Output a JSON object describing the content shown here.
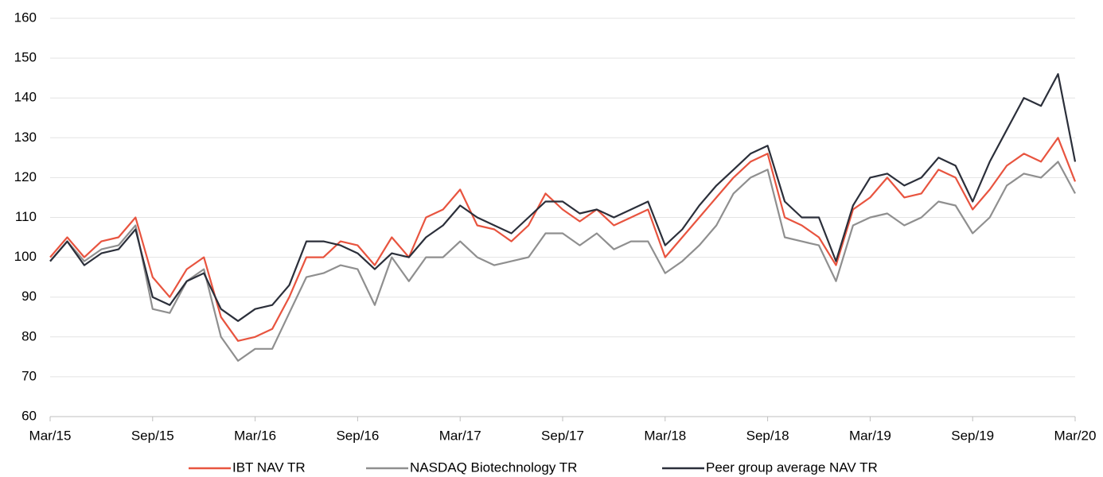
{
  "chart_data": {
    "type": "line",
    "categories": [
      "Mar/15",
      null,
      null,
      null,
      null,
      null,
      "Sep/15",
      null,
      null,
      null,
      null,
      null,
      "Mar/16",
      null,
      null,
      null,
      null,
      null,
      "Sep/16",
      null,
      null,
      null,
      null,
      null,
      "Mar/17",
      null,
      null,
      null,
      null,
      null,
      "Sep/17",
      null,
      null,
      null,
      null,
      null,
      "Mar/18",
      null,
      null,
      null,
      null,
      null,
      "Sep/18",
      null,
      null,
      null,
      null,
      null,
      "Mar/19",
      null,
      null,
      null,
      null,
      null,
      "Sep/19",
      null,
      null,
      null,
      null,
      null,
      "Mar/20"
    ],
    "series": [
      {
        "name": "IBT NAV TR",
        "color": "#e8543f",
        "values": [
          100,
          105,
          100,
          104,
          105,
          110,
          95,
          90,
          97,
          100,
          85,
          79,
          80,
          82,
          90,
          100,
          100,
          104,
          103,
          98,
          105,
          100,
          110,
          112,
          117,
          108,
          107,
          104,
          108,
          116,
          112,
          109,
          112,
          108,
          110,
          112,
          100,
          105,
          110,
          115,
          120,
          124,
          126,
          110,
          108,
          105,
          98,
          112,
          115,
          120,
          115,
          116,
          122,
          120,
          112,
          117,
          123,
          126,
          124,
          130,
          119
        ]
      },
      {
        "name": "NASDAQ Biotechnology TR",
        "color": "#8f8f8f",
        "values": [
          99,
          104,
          99,
          102,
          103,
          108,
          87,
          86,
          94,
          97,
          80,
          74,
          77,
          77,
          86,
          95,
          96,
          98,
          97,
          88,
          100,
          94,
          100,
          100,
          104,
          100,
          98,
          99,
          100,
          106,
          106,
          103,
          106,
          102,
          104,
          104,
          96,
          99,
          103,
          108,
          116,
          120,
          122,
          105,
          104,
          103,
          94,
          108,
          110,
          111,
          108,
          110,
          114,
          113,
          106,
          110,
          118,
          121,
          120,
          124,
          116
        ]
      },
      {
        "name": "Peer group average NAV TR",
        "color": "#2b2f3a",
        "values": [
          99,
          104,
          98,
          101,
          102,
          107,
          90,
          88,
          94,
          96,
          87,
          84,
          87,
          88,
          93,
          104,
          104,
          103,
          101,
          97,
          101,
          100,
          105,
          108,
          113,
          110,
          108,
          106,
          110,
          114,
          114,
          111,
          112,
          110,
          112,
          114,
          103,
          107,
          113,
          118,
          122,
          126,
          128,
          114,
          110,
          110,
          99,
          113,
          120,
          121,
          118,
          120,
          125,
          123,
          114,
          124,
          132,
          140,
          138,
          146,
          124
        ]
      }
    ],
    "ylim": [
      60,
      160
    ],
    "yticks": [
      60,
      70,
      80,
      90,
      100,
      110,
      120,
      130,
      140,
      150,
      160
    ],
    "grid": true,
    "legend": "bottom"
  }
}
